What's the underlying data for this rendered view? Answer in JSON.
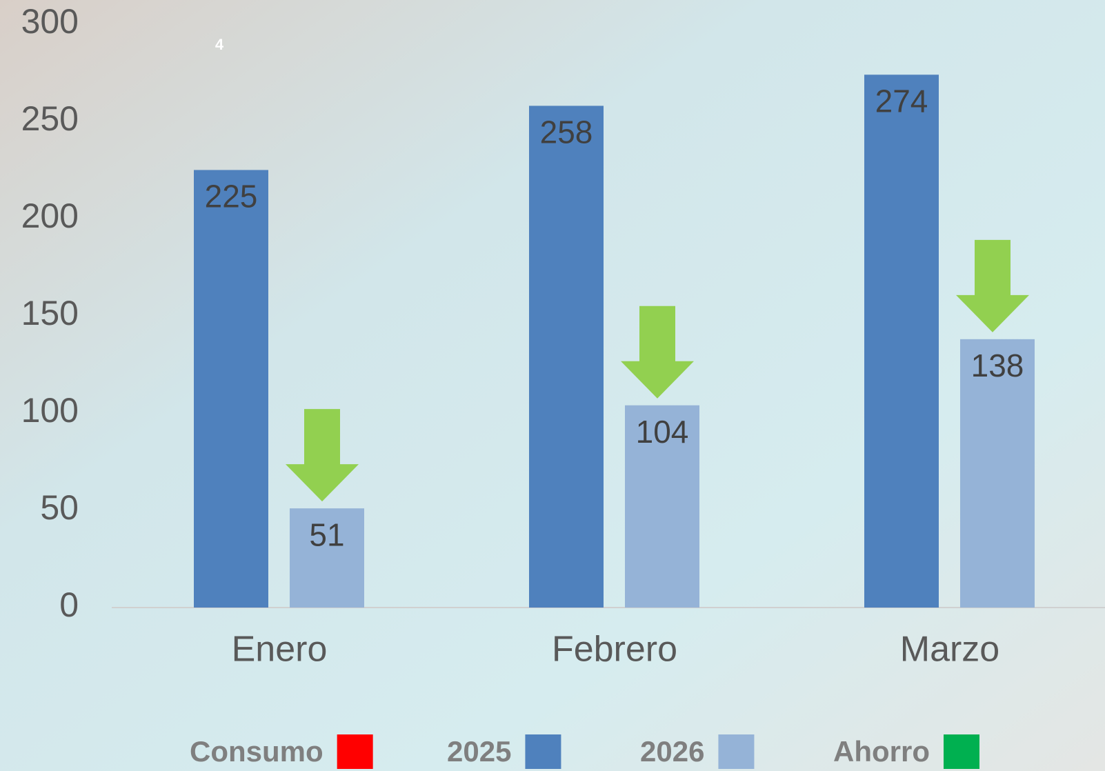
{
  "chart_data": {
    "type": "bar",
    "page_number": "4",
    "categories": [
      "Enero",
      "Febrero",
      "Marzo"
    ],
    "series": [
      {
        "name": "2025",
        "color": "#4f81bd",
        "values": [
          225,
          258,
          274
        ]
      },
      {
        "name": "2026",
        "color": "#95b3d7",
        "values": [
          51,
          104,
          138
        ]
      }
    ],
    "legend_items": [
      {
        "name": "Consumo",
        "color": "#ff0000"
      },
      {
        "name": "Ahorro",
        "color": "#00b050"
      }
    ],
    "arrow_color": "#92d050",
    "ylim": [
      0,
      300
    ],
    "yticks": [
      0,
      50,
      100,
      150,
      200,
      250,
      300
    ]
  }
}
